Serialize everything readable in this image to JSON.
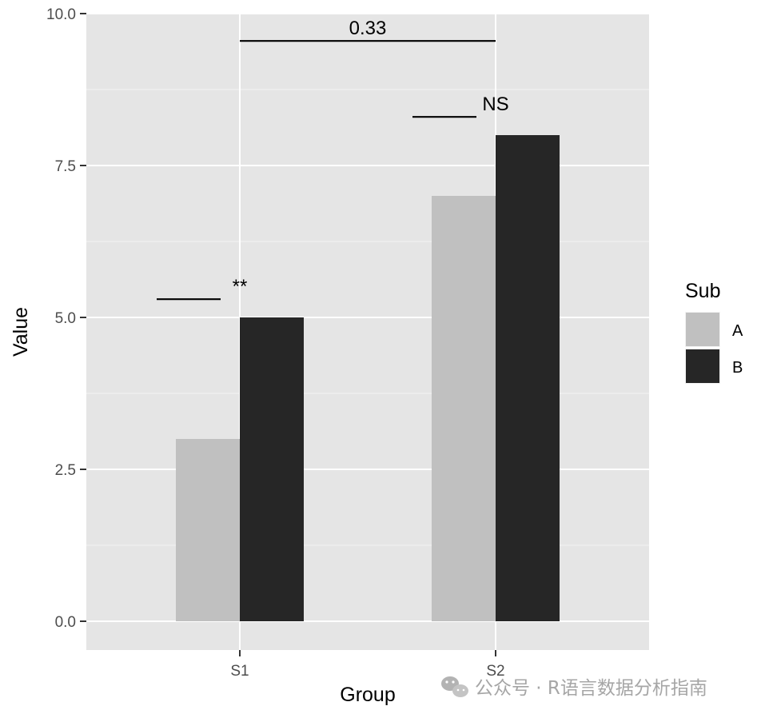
{
  "chart_data": {
    "type": "bar",
    "xlabel": "Group",
    "ylabel": "Value",
    "categories": [
      "S1",
      "S2"
    ],
    "ylim": [
      0,
      10
    ],
    "yticks": [
      0,
      2.5,
      5,
      7.5,
      10
    ],
    "ytick_labels": [
      "0.0",
      "2.5",
      "5.0",
      "7.5",
      "10.0"
    ],
    "grid": true,
    "legend": {
      "title": "Sub",
      "position": "right"
    },
    "series": [
      {
        "name": "A",
        "color": "#c0c0c0",
        "values": [
          3,
          7
        ]
      },
      {
        "name": "B",
        "color": "#262626",
        "values": [
          5,
          8
        ]
      }
    ],
    "annotations": [
      {
        "label": "**",
        "x_from": [
          0,
          0
        ],
        "x_to": [
          0,
          1
        ],
        "y": 5.3
      },
      {
        "label": "NS",
        "x_from": [
          1,
          0
        ],
        "x_to": [
          1,
          1
        ],
        "y": 8.3
      },
      {
        "label": "0.33",
        "x_from": [
          0,
          0.5
        ],
        "x_to": [
          1,
          0.5
        ],
        "y": 9.55
      }
    ]
  },
  "watermark": {
    "text": "公众号 · R语言数据分析指南",
    "icon": "wechat-icon"
  }
}
